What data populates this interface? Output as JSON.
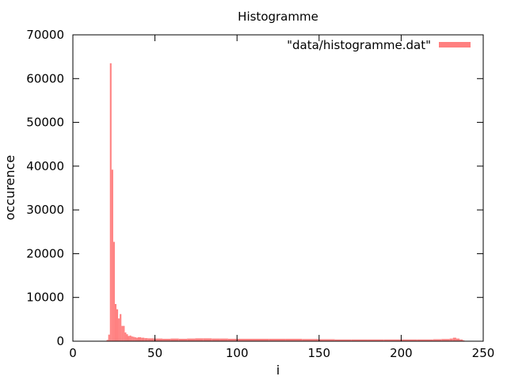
{
  "chart_data": {
    "type": "bar",
    "title": "Histogramme",
    "xlabel": "i",
    "ylabel": "occurence",
    "xlim": [
      0,
      250
    ],
    "ylim": [
      0,
      70000
    ],
    "xticks": [
      0,
      50,
      100,
      150,
      200,
      250
    ],
    "yticks": [
      0,
      10000,
      20000,
      30000,
      40000,
      50000,
      60000,
      70000
    ],
    "grid": false,
    "legend_position": "top-right",
    "series": [
      {
        "name": "\"data/histogramme.dat\"",
        "color": "#ff8080",
        "x": [
          21,
          22,
          23,
          24,
          25,
          26,
          27,
          28,
          29,
          30,
          31,
          32,
          33,
          34,
          35,
          36,
          37,
          38,
          39,
          40,
          42,
          44,
          46,
          48,
          50,
          55,
          60,
          65,
          70,
          75,
          80,
          85,
          90,
          95,
          100,
          110,
          120,
          130,
          140,
          150,
          160,
          170,
          180,
          190,
          200,
          210,
          220,
          225,
          230,
          232,
          234,
          236,
          238
        ],
        "values": [
          300,
          1500,
          63500,
          39200,
          22700,
          8500,
          7300,
          5200,
          6200,
          3500,
          3500,
          2000,
          1600,
          1200,
          1300,
          1100,
          1000,
          900,
          800,
          900,
          800,
          700,
          650,
          650,
          600,
          550,
          600,
          550,
          600,
          650,
          650,
          600,
          600,
          550,
          550,
          550,
          550,
          550,
          500,
          450,
          400,
          400,
          400,
          400,
          400,
          400,
          450,
          500,
          600,
          800,
          600,
          400,
          200
        ]
      }
    ]
  }
}
